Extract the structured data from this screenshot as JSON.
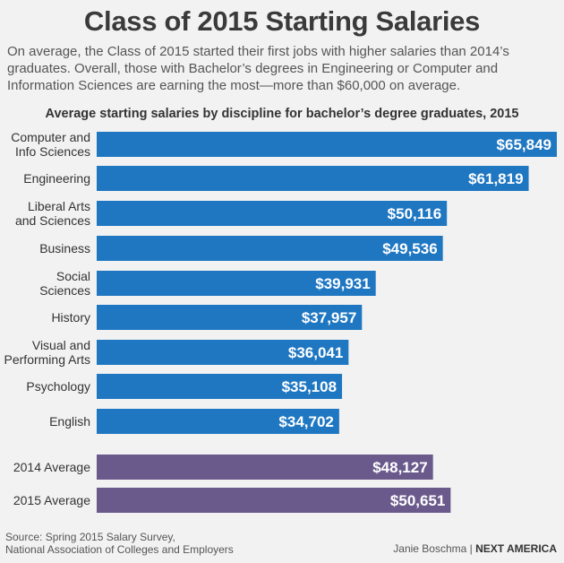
{
  "title": "Class of 2015 Starting Salaries",
  "subtitle": "On average, the Class of 2015 started their first jobs with higher salaries than 2014’s graduates. Overall, those with Bachelor’s degrees in Engineering or Computer and Information Sciences are earning the most—more than $60,000 on average.",
  "source_line1": "Source: Spring 2015 Salary Survey,",
  "source_line2": "National Association of Colleges and Employers",
  "credit_author": "Janie Boschma",
  "credit_separator": " | ",
  "credit_brand": "NEXT AMERICA",
  "colors": {
    "discipline_bar": "#1f77c2",
    "average_bar": "#6a5a8c",
    "bar_label": "#ffffff",
    "background": "#f2f2f2"
  },
  "chart_data": {
    "type": "bar",
    "orientation": "horizontal",
    "title": "Average starting salaries by discipline for bachelor’s degree graduates, 2015",
    "xlabel": "",
    "ylabel": "",
    "grid": false,
    "legend": "none",
    "xlim": [
      0,
      65849
    ],
    "categories": [
      "Computer and Info Sciences",
      "Engineering",
      "Liberal Arts and Sciences",
      "Business",
      "Social Sciences",
      "History",
      "Visual and Performing Arts",
      "Psychology",
      "English",
      "2014 Average",
      "2015 Average"
    ],
    "category_lines": [
      [
        "Computer and",
        "Info Sciences"
      ],
      [
        "Engineering"
      ],
      [
        "Liberal Arts",
        "and Sciences"
      ],
      [
        "Business"
      ],
      [
        "Social",
        "Sciences"
      ],
      [
        "History"
      ],
      [
        "Visual and",
        "Performing Arts"
      ],
      [
        "Psychology"
      ],
      [
        "English"
      ],
      [
        "2014 Average"
      ],
      [
        "2015 Average"
      ]
    ],
    "values": [
      65849,
      61819,
      50116,
      49536,
      39931,
      37957,
      36041,
      35108,
      34702,
      48127,
      50651
    ],
    "value_labels": [
      "$65,849",
      "$61,819",
      "$50,116",
      "$49,536",
      "$39,931",
      "$37,957",
      "$36,041",
      "$35,108",
      "$34,702",
      "$48,127",
      "$50,651"
    ],
    "group": [
      "discipline",
      "discipline",
      "discipline",
      "discipline",
      "discipline",
      "discipline",
      "discipline",
      "discipline",
      "discipline",
      "average",
      "average"
    ]
  }
}
